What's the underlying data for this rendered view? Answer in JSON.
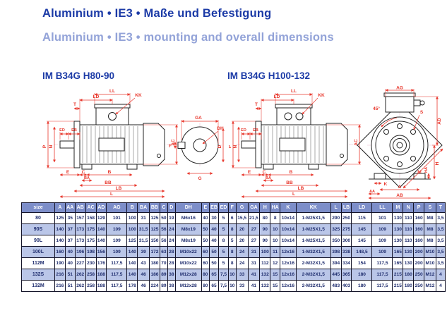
{
  "page": {
    "title_de": "Aluminium • IE3 • Maße und Befestigung",
    "title_en": "Aluminium • IE3 • mounting and overall dimensions"
  },
  "colors": {
    "title-blue": "#1b3aa6",
    "subtitle-blue": "#93a3d8",
    "dim-red": "#e8372c",
    "table-header-bg": "#7d8ec9",
    "row-stripe-bg": "#bac6e8",
    "table-text": "#1f2d6e"
  },
  "drawings": [
    {
      "caption": "IM B34G H80-90",
      "side_labels": {
        "ll": "LL",
        "ld": "LD",
        "kk": "KK",
        "t": "T",
        "ed": "ED",
        "eb": "EB",
        "p": "P",
        "n": "N",
        "ac": "AC",
        "e": "E",
        "c": "C",
        "b": "B",
        "ba": "BA",
        "bb": "BB",
        "lb": "LB",
        "l": "L"
      },
      "shaft_labels": {
        "ga": "GA",
        "dh": "DH",
        "f": "F",
        "d": "D",
        "g": "G"
      }
    },
    {
      "caption": "IM B34G H100-132",
      "side_labels": {
        "ll": "LL",
        "ld": "LD",
        "kk": "KK",
        "t": "T",
        "ed": "ED",
        "eb": "EB",
        "p": "P",
        "n": "N",
        "ac": "AC",
        "e": "E",
        "c": "C",
        "b": "B",
        "ba": "BA",
        "bb": "BB",
        "lb": "LB",
        "l": "L"
      },
      "front_labels": {
        "ag": "AG",
        "angle45": "45°",
        "s": "S",
        "ad": "AD",
        "h": "H",
        "ha": "HA",
        "k": "K",
        "a": "A",
        "aa": "AA",
        "ab": "AB",
        "m": "M"
      }
    }
  ],
  "table": {
    "columns": [
      "size",
      "A",
      "AA",
      "AB",
      "AC",
      "AD",
      "AG",
      "B",
      "BA",
      "BB",
      "C",
      "D",
      "DH",
      "E",
      "EB",
      "ED",
      "F",
      "G",
      "GA",
      "H",
      "HA",
      "K",
      "KK",
      "L",
      "LB",
      "LD",
      "LL",
      "M",
      "N",
      "P",
      "S",
      "T"
    ],
    "rows": [
      [
        "80",
        "125",
        "35",
        "157",
        "158",
        "129",
        "101",
        "100",
        "31",
        "125",
        "50",
        "19",
        "M6x16",
        "40",
        "30",
        "5",
        "6",
        "15,5",
        "21,5",
        "80",
        "8",
        "10x14",
        "1-M25X1,5",
        "290",
        "250",
        "115",
        "101",
        "130",
        "110",
        "160",
        "M8",
        "3,5"
      ],
      [
        "90S",
        "140",
        "37",
        "173",
        "175",
        "140",
        "109",
        "100",
        "31,5",
        "125",
        "56",
        "24",
        "M8x19",
        "50",
        "40",
        "5",
        "8",
        "20",
        "27",
        "90",
        "10",
        "10x14",
        "1-M25X1,5",
        "325",
        "275",
        "145",
        "109",
        "130",
        "110",
        "160",
        "M8",
        "3,5"
      ],
      [
        "90L",
        "140",
        "37",
        "173",
        "175",
        "140",
        "109",
        "125",
        "31,5",
        "150",
        "56",
        "24",
        "M8x19",
        "50",
        "40",
        "8",
        "5",
        "20",
        "27",
        "90",
        "10",
        "10x14",
        "1-M25X1,5",
        "350",
        "300",
        "145",
        "109",
        "130",
        "110",
        "160",
        "M8",
        "3,5"
      ],
      [
        "100L",
        "160",
        "40",
        "196",
        "198",
        "156",
        "109",
        "140",
        "39",
        "172",
        "63",
        "28",
        "M10x22",
        "60",
        "50",
        "5",
        "8",
        "24",
        "31",
        "100",
        "11",
        "12x16",
        "1-M32X1,5",
        "398",
        "338",
        "148,5",
        "109",
        "165",
        "130",
        "200",
        "M10",
        "3,5"
      ],
      [
        "112M",
        "190",
        "40",
        "227",
        "230",
        "176",
        "117,5",
        "140",
        "43",
        "180",
        "70",
        "28",
        "M10x22",
        "60",
        "50",
        "5",
        "8",
        "24",
        "31",
        "112",
        "12",
        "12x16",
        "2-M32X1,5",
        "394",
        "334",
        "154",
        "117,5",
        "165",
        "130",
        "200",
        "M10",
        "3,5"
      ],
      [
        "132S",
        "216",
        "51",
        "262",
        "258",
        "188",
        "117,5",
        "140",
        "46",
        "186",
        "89",
        "38",
        "M12x28",
        "80",
        "65",
        "7,5",
        "10",
        "33",
        "41",
        "132",
        "15",
        "12x16",
        "2-M32X1,5",
        "445",
        "365",
        "180",
        "117,5",
        "215",
        "180",
        "250",
        "M12",
        "4"
      ],
      [
        "132M",
        "216",
        "51",
        "262",
        "258",
        "188",
        "117,5",
        "178",
        "46",
        "224",
        "89",
        "38",
        "M12x28",
        "80",
        "65",
        "7,5",
        "10",
        "33",
        "41",
        "132",
        "15",
        "12x16",
        "2-M32X1,5",
        "483",
        "403",
        "180",
        "117,5",
        "215",
        "180",
        "250",
        "M12",
        "4"
      ]
    ]
  }
}
